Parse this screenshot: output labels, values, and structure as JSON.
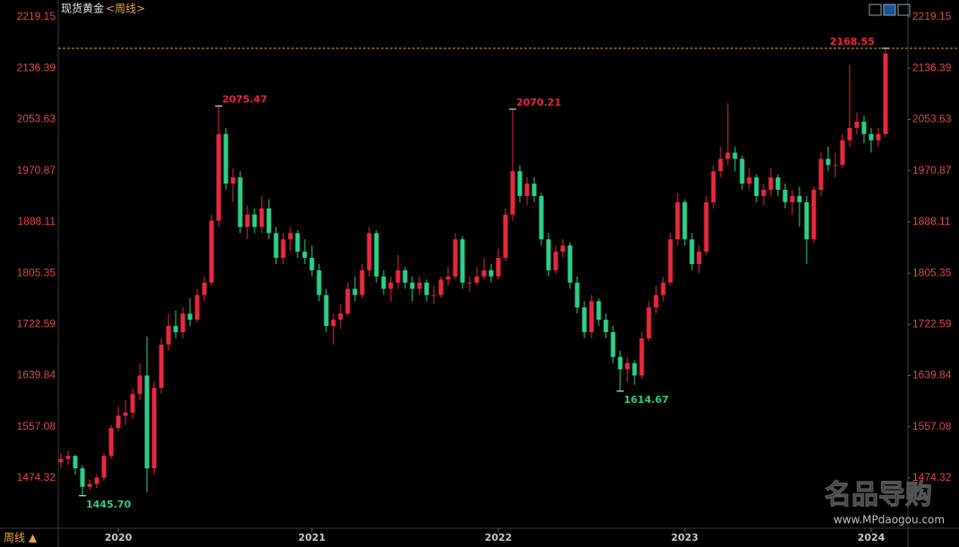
{
  "chart_data": {
    "type": "candlestick",
    "title": "现货黄金",
    "period": "<周线>",
    "categories": [
      null,
      null,
      null,
      null,
      null,
      null,
      null,
      null,
      "2020",
      null,
      null,
      null,
      null,
      null,
      null,
      null,
      null,
      null,
      null,
      null,
      null,
      null,
      null,
      null,
      null,
      null,
      null,
      null,
      null,
      null,
      null,
      null,
      null,
      null,
      null,
      "2021",
      null,
      null,
      null,
      null,
      null,
      null,
      null,
      null,
      null,
      null,
      null,
      null,
      null,
      null,
      null,
      null,
      null,
      null,
      null,
      null,
      null,
      null,
      null,
      null,
      null,
      "2022",
      null,
      null,
      null,
      null,
      null,
      null,
      null,
      null,
      null,
      null,
      null,
      null,
      null,
      null,
      null,
      null,
      null,
      null,
      null,
      null,
      null,
      null,
      null,
      null,
      null,
      "2023",
      null,
      null,
      null,
      null,
      null,
      null,
      null,
      null,
      null,
      null,
      null,
      null,
      null,
      null,
      null,
      null,
      null,
      null,
      null,
      null,
      null,
      null,
      null,
      null,
      null,
      "2024",
      null,
      null
    ],
    "open": [
      1500,
      1505,
      1510,
      1490,
      1460,
      1465,
      1475,
      1510,
      1555,
      1575,
      1580,
      1610,
      1640,
      1490,
      1620,
      1690,
      1720,
      1710,
      1740,
      1730,
      1770,
      1790,
      1890,
      2030,
      1950,
      1960,
      1880,
      1900,
      1880,
      1910,
      1870,
      1830,
      1860,
      1870,
      1840,
      1830,
      1810,
      1770,
      1720,
      1730,
      1740,
      1780,
      1770,
      1810,
      1870,
      1800,
      1780,
      1790,
      1810,
      1790,
      1780,
      1790,
      1770,
      1770,
      1795,
      1800,
      1860,
      1790,
      1790,
      1800,
      1810,
      1800,
      1830,
      1900,
      1970,
      1930,
      1950,
      1930,
      1860,
      1810,
      1840,
      1850,
      1790,
      1750,
      1710,
      1760,
      1730,
      1710,
      1670,
      1650,
      1660,
      1640,
      1700,
      1750,
      1770,
      1790,
      1860,
      1920,
      1860,
      1820,
      1840,
      1920,
      1970,
      1990,
      2000,
      1990,
      1950,
      1960,
      1930,
      1940,
      1960,
      1940,
      1920,
      1930,
      1920,
      1860,
      1940,
      1990,
      1980,
      1980,
      2020,
      2040,
      2050,
      2030,
      2020,
      2030
    ],
    "high": [
      1515,
      1518,
      1512,
      1495,
      1472,
      1480,
      1515,
      1560,
      1590,
      1600,
      1620,
      1660,
      1703,
      1630,
      1700,
      1740,
      1745,
      1750,
      1765,
      1780,
      1800,
      1900,
      2075.47,
      2040,
      1975,
      1970,
      1915,
      1910,
      1930,
      1925,
      1880,
      1870,
      1880,
      1875,
      1860,
      1850,
      1820,
      1780,
      1740,
      1755,
      1790,
      1800,
      1820,
      1880,
      1875,
      1810,
      1800,
      1835,
      1815,
      1800,
      1800,
      1795,
      1785,
      1800,
      1815,
      1870,
      1865,
      1800,
      1815,
      1830,
      1820,
      1845,
      1910,
      2070.21,
      1980,
      1960,
      1960,
      1935,
      1870,
      1850,
      1860,
      1855,
      1800,
      1760,
      1770,
      1765,
      1740,
      1720,
      1680,
      1670,
      1665,
      1710,
      1760,
      1785,
      1800,
      1870,
      1935,
      1925,
      1870,
      1850,
      1930,
      1980,
      2010,
      2080,
      2010,
      1995,
      1975,
      1965,
      1950,
      1975,
      1965,
      1950,
      1940,
      1945,
      1930,
      1945,
      2000,
      2010,
      2000,
      2030,
      2142,
      2065,
      2060,
      2040,
      2040,
      2168.55
    ],
    "low": [
      1490,
      1495,
      1480,
      1445.7,
      1455,
      1458,
      1470,
      1505,
      1550,
      1560,
      1570,
      1600,
      1451,
      1480,
      1610,
      1680,
      1700,
      1700,
      1720,
      1725,
      1760,
      1785,
      1880,
      1940,
      1920,
      1870,
      1860,
      1870,
      1870,
      1860,
      1820,
      1820,
      1840,
      1830,
      1820,
      1800,
      1760,
      1710,
      1690,
      1715,
      1735,
      1760,
      1765,
      1800,
      1790,
      1770,
      1760,
      1780,
      1780,
      1760,
      1770,
      1760,
      1755,
      1765,
      1785,
      1795,
      1780,
      1775,
      1785,
      1795,
      1790,
      1795,
      1825,
      1890,
      1920,
      1915,
      1920,
      1850,
      1800,
      1805,
      1830,
      1780,
      1740,
      1700,
      1700,
      1720,
      1700,
      1660,
      1614.67,
      1630,
      1625,
      1635,
      1695,
      1740,
      1760,
      1785,
      1850,
      1850,
      1810,
      1805,
      1835,
      1910,
      1960,
      1980,
      1970,
      1940,
      1940,
      1920,
      1915,
      1930,
      1930,
      1910,
      1900,
      1880,
      1820,
      1855,
      1930,
      1970,
      1960,
      1975,
      2010,
      2030,
      2015,
      2000,
      2010,
      2025
    ],
    "close": [
      1505,
      1510,
      1490,
      1460,
      1465,
      1475,
      1510,
      1555,
      1575,
      1580,
      1610,
      1640,
      1490,
      1620,
      1690,
      1720,
      1710,
      1740,
      1730,
      1770,
      1790,
      1890,
      2030,
      1950,
      1960,
      1880,
      1900,
      1880,
      1910,
      1870,
      1830,
      1860,
      1870,
      1840,
      1830,
      1810,
      1770,
      1720,
      1730,
      1740,
      1780,
      1770,
      1810,
      1870,
      1800,
      1780,
      1790,
      1810,
      1790,
      1780,
      1790,
      1770,
      1770,
      1795,
      1800,
      1860,
      1790,
      1790,
      1800,
      1810,
      1800,
      1830,
      1900,
      1970,
      1930,
      1950,
      1930,
      1860,
      1810,
      1840,
      1850,
      1790,
      1750,
      1710,
      1760,
      1730,
      1710,
      1670,
      1650,
      1660,
      1640,
      1700,
      1750,
      1770,
      1790,
      1860,
      1920,
      1860,
      1820,
      1840,
      1920,
      1970,
      1990,
      2000,
      1990,
      1950,
      1960,
      1930,
      1940,
      1960,
      1940,
      1920,
      1930,
      1920,
      1860,
      1940,
      1990,
      1980,
      1980,
      2020,
      2040,
      2050,
      2030,
      2020,
      2030,
      2160
    ],
    "up_color": "#e8283c",
    "down_color": "#2ecf86",
    "ylim": [
      1393.3,
      2246.6
    ],
    "yticks": [
      1474.32,
      1557.08,
      1639.84,
      1722.59,
      1805.35,
      1888.11,
      1970.87,
      2053.63,
      2136.39,
      2219.15
    ],
    "value_labels": {
      "high": {
        "22": "2075.47",
        "63": "2070.21",
        "115": "2168.55"
      },
      "low": {
        "3": "1445.70",
        "78": "1614.67"
      }
    }
  },
  "period_button": "周线 ▲",
  "watermark": {
    "logo": "名品导购",
    "url": "www.MPdaogou.com"
  }
}
